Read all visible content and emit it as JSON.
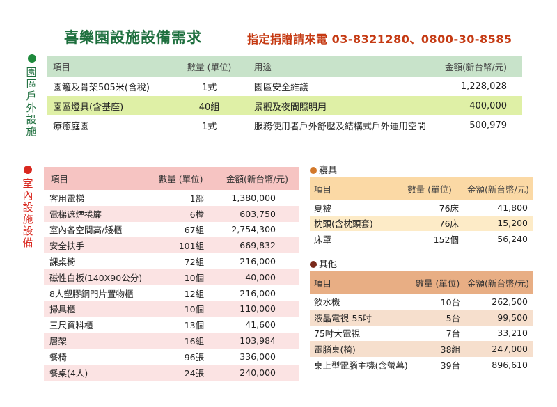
{
  "title": "喜樂園設施設備需求",
  "contact": "指定捐贈請來電 03-8321280、0800-30-8585",
  "outdoor": {
    "label": "園區戶外設施",
    "headers": [
      "項目",
      "數量 (單位)",
      "用途",
      "金額(新台幣/元)"
    ],
    "rows": [
      [
        "園籬及骨架505米(含稅)",
        "1式",
        "園區安全維護",
        "1,228,028"
      ],
      [
        "園區燈具(含基座)",
        "40組",
        "景觀及夜間照明用",
        "400,000"
      ],
      [
        "療癒庭園",
        "1式",
        "服務使用者戶外舒壓及結構式戶外運用空間",
        "500,979"
      ]
    ]
  },
  "indoor": {
    "label": "室內設施設備",
    "headers": [
      "項目",
      "數量 (單位)",
      "金額(新台幣/元)"
    ],
    "rows": [
      [
        "客用電梯",
        "1部",
        "1,380,000"
      ],
      [
        "電梯遮煙捲簾",
        "6樘",
        "603,750"
      ],
      [
        "室內各空間高/矮櫃",
        "67組",
        "2,754,300"
      ],
      [
        "安全扶手",
        "101組",
        "669,832"
      ],
      [
        "課桌椅",
        "72組",
        "216,000"
      ],
      [
        "磁性白板(140X90公分)",
        "10個",
        "40,000"
      ],
      [
        "8人塑膠鋼門片置物櫃",
        "12組",
        "216,000"
      ],
      [
        "掃具櫃",
        "10個",
        "110,000"
      ],
      [
        "三尺資料櫃",
        "13個",
        "41,600"
      ],
      [
        "層架",
        "16組",
        "103,984"
      ],
      [
        "餐椅",
        "96張",
        "336,000"
      ],
      [
        "餐桌(4人)",
        "24張",
        "240,000"
      ]
    ]
  },
  "bedding": {
    "label": "寢具",
    "headers": [
      "項目",
      "數量 (單位)",
      "金額(新台幣/元)"
    ],
    "rows": [
      [
        "夏被",
        "76床",
        "41,800"
      ],
      [
        "枕頭(含枕頭套)",
        "76床",
        "15,200"
      ],
      [
        "床罩",
        "152個",
        "56,240"
      ]
    ]
  },
  "other": {
    "label": "其他",
    "headers": [
      "項目",
      "數量 (單位)",
      "金額(新台幣/元)"
    ],
    "rows": [
      [
        "飲水機",
        "10台",
        "262,500"
      ],
      [
        "液晶電視-55吋",
        "5台",
        "99,500"
      ],
      [
        "75吋大電視",
        "7台",
        "33,210"
      ],
      [
        "電腦桌(椅)",
        "38組",
        "247,000"
      ],
      [
        "桌上型電腦主機(含螢幕)",
        "39台",
        "896,610"
      ]
    ]
  },
  "colors": {
    "title": "#1e6f3e",
    "contact": "#c53a13",
    "outdoor_dot": "#1f8a3c",
    "indoor_dot": "#d9281f",
    "bedding_dot": "#d2782a",
    "other_dot": "#7a2a1a"
  }
}
